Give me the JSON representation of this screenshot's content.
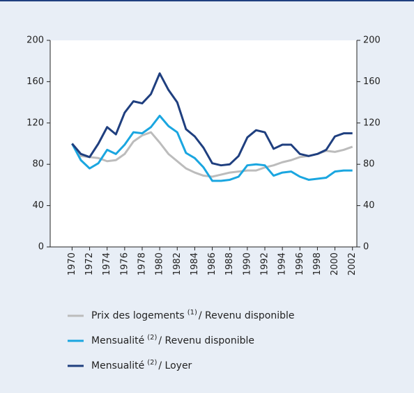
{
  "chart_data": {
    "type": "line",
    "x": [
      1970,
      1971,
      1972,
      1973,
      1974,
      1975,
      1976,
      1977,
      1978,
      1979,
      1980,
      1981,
      1982,
      1983,
      1984,
      1985,
      1986,
      1987,
      1988,
      1989,
      1990,
      1991,
      1992,
      1993,
      1994,
      1995,
      1996,
      1997,
      1998,
      1999,
      2000,
      2001,
      2002
    ],
    "xlim": [
      1967.5,
      2002.5
    ],
    "xticks": [
      1970,
      1972,
      1974,
      1976,
      1978,
      1980,
      1982,
      1984,
      1986,
      1988,
      1990,
      1992,
      1994,
      1996,
      1998,
      2000,
      2002
    ],
    "ylim": [
      0,
      200
    ],
    "yticks": [
      0,
      40,
      80,
      120,
      160,
      200
    ],
    "y2lim": [
      0,
      200
    ],
    "y2ticks": [
      0,
      40,
      80,
      120,
      160,
      200
    ],
    "series": [
      {
        "name": "Prix des logements",
        "note": "(1)",
        "name_suffix": "/ Revenu disponible",
        "color": "#bcbcbc",
        "values": [
          100,
          88,
          87,
          86,
          83,
          84,
          90,
          102,
          108,
          111,
          101,
          90,
          83,
          76,
          72,
          69,
          68,
          70,
          72,
          73,
          74,
          74,
          77,
          79,
          82,
          84,
          87,
          88,
          90,
          93,
          92,
          94,
          97
        ]
      },
      {
        "name": "Mensualité",
        "note": "(2)",
        "name_suffix": "/ Revenu disponible",
        "color": "#1aa6e0",
        "values": [
          100,
          84,
          76,
          81,
          94,
          90,
          99,
          111,
          110,
          116,
          127,
          117,
          111,
          91,
          86,
          77,
          64,
          64,
          65,
          68,
          79,
          80,
          79,
          69,
          72,
          73,
          68,
          65,
          66,
          67,
          73,
          74,
          74
        ]
      },
      {
        "name": "Mensualité",
        "note": "(2)",
        "name_suffix": "/ Loyer",
        "color": "#1f3f7f",
        "values": [
          100,
          90,
          87,
          100,
          116,
          109,
          130,
          141,
          139,
          148,
          168,
          152,
          140,
          114,
          107,
          96,
          81,
          79,
          80,
          88,
          106,
          113,
          111,
          95,
          99,
          99,
          90,
          88,
          90,
          94,
          107,
          110,
          110
        ]
      }
    ]
  }
}
